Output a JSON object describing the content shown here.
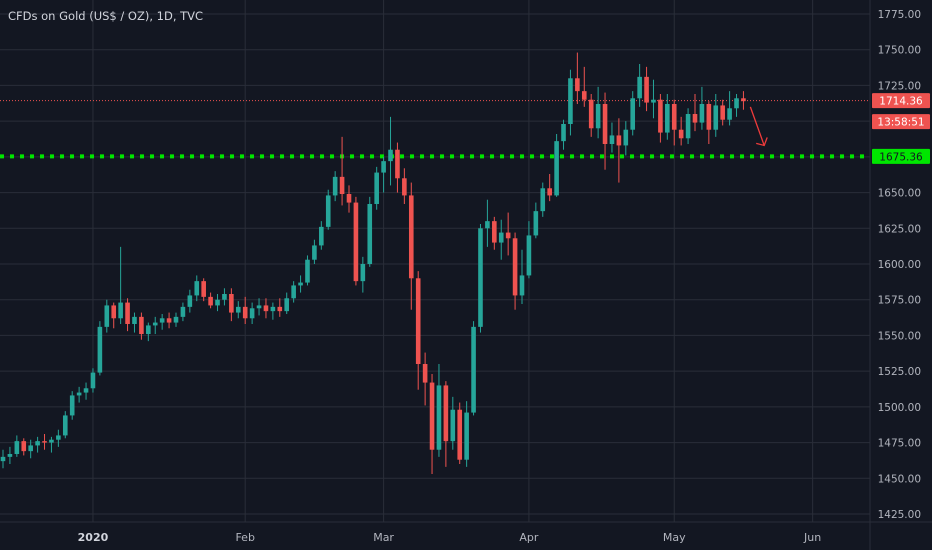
{
  "header": {
    "title": "CFDs on Gold (US$ / OZ), 1D, TVC"
  },
  "colors": {
    "background": "#131722",
    "grid": "#2a2e39",
    "up": "#26a69a",
    "down": "#ef5350",
    "support": "#00e600",
    "last_price": "#ef5350"
  },
  "chart_data": {
    "type": "candlestick",
    "title": "CFDs on Gold (US$ / OZ), 1D, TVC",
    "ylim": [
      1420,
      1780
    ],
    "yticks": [
      1425,
      1450,
      1475,
      1500,
      1525,
      1550,
      1575,
      1600,
      1625,
      1650,
      1675,
      1700,
      1725,
      1750,
      1775
    ],
    "ytick_labels": [
      "1425.00",
      "1450.00",
      "1475.00",
      "1500.00",
      "1525.00",
      "1550.00",
      "1575.00",
      "1600.00",
      "1625.00",
      "1650.00",
      "1675.00",
      "1700.00",
      "1725.00",
      "1750.00",
      "1775.00"
    ],
    "xticks": [
      {
        "label": "2020",
        "index": 13,
        "bold": true
      },
      {
        "label": "Feb",
        "index": 35,
        "bold": false
      },
      {
        "label": "Mar",
        "index": 55,
        "bold": false
      },
      {
        "label": "Apr",
        "index": 76,
        "bold": false
      },
      {
        "label": "May",
        "index": 97,
        "bold": false
      },
      {
        "label": "Jun",
        "index": 117,
        "bold": false
      }
    ],
    "last_price": {
      "value": 1714.36,
      "label": "1714.36",
      "countdown": "13:58:51"
    },
    "support_level": {
      "value": 1675.36,
      "label": "1675.36"
    },
    "arrow": {
      "from_index": 108,
      "from_price": 1710,
      "to_index": 110,
      "to_price": 1683
    },
    "candles": [
      [
        1462,
        1470,
        1457,
        1465
      ],
      [
        1465,
        1472,
        1460,
        1467
      ],
      [
        1467,
        1480,
        1465,
        1476
      ],
      [
        1476,
        1478,
        1466,
        1469
      ],
      [
        1469,
        1477,
        1464,
        1473
      ],
      [
        1473,
        1479,
        1468,
        1476
      ],
      [
        1476,
        1481,
        1470,
        1475
      ],
      [
        1475,
        1479,
        1468,
        1477
      ],
      [
        1477,
        1484,
        1472,
        1480
      ],
      [
        1480,
        1497,
        1478,
        1494
      ],
      [
        1494,
        1511,
        1491,
        1508
      ],
      [
        1508,
        1514,
        1503,
        1510
      ],
      [
        1510,
        1517,
        1505,
        1513
      ],
      [
        1513,
        1527,
        1510,
        1524
      ],
      [
        1524,
        1560,
        1522,
        1556
      ],
      [
        1556,
        1575,
        1552,
        1571
      ],
      [
        1571,
        1573,
        1555,
        1562
      ],
      [
        1562,
        1612,
        1558,
        1573
      ],
      [
        1573,
        1576,
        1553,
        1558
      ],
      [
        1558,
        1566,
        1552,
        1563
      ],
      [
        1563,
        1566,
        1547,
        1551
      ],
      [
        1551,
        1559,
        1546,
        1557
      ],
      [
        1557,
        1563,
        1551,
        1559
      ],
      [
        1559,
        1565,
        1554,
        1562
      ],
      [
        1562,
        1566,
        1555,
        1559
      ],
      [
        1559,
        1566,
        1556,
        1563
      ],
      [
        1563,
        1573,
        1560,
        1570
      ],
      [
        1570,
        1582,
        1566,
        1578
      ],
      [
        1578,
        1592,
        1574,
        1588
      ],
      [
        1588,
        1590,
        1574,
        1577
      ],
      [
        1577,
        1580,
        1569,
        1571
      ],
      [
        1571,
        1579,
        1567,
        1575
      ],
      [
        1575,
        1583,
        1571,
        1579
      ],
      [
        1579,
        1583,
        1560,
        1566
      ],
      [
        1566,
        1574,
        1562,
        1570
      ],
      [
        1570,
        1577,
        1558,
        1562
      ],
      [
        1562,
        1573,
        1558,
        1569
      ],
      [
        1569,
        1576,
        1564,
        1571
      ],
      [
        1571,
        1576,
        1562,
        1567
      ],
      [
        1567,
        1573,
        1561,
        1570
      ],
      [
        1570,
        1576,
        1563,
        1567
      ],
      [
        1567,
        1580,
        1565,
        1576
      ],
      [
        1576,
        1588,
        1573,
        1585
      ],
      [
        1585,
        1592,
        1580,
        1587
      ],
      [
        1587,
        1606,
        1585,
        1603
      ],
      [
        1603,
        1617,
        1600,
        1613
      ],
      [
        1613,
        1630,
        1610,
        1626
      ],
      [
        1626,
        1652,
        1624,
        1648
      ],
      [
        1648,
        1665,
        1644,
        1661
      ],
      [
        1661,
        1689,
        1641,
        1649
      ],
      [
        1649,
        1655,
        1636,
        1643
      ],
      [
        1643,
        1647,
        1585,
        1588
      ],
      [
        1588,
        1605,
        1580,
        1600
      ],
      [
        1600,
        1647,
        1598,
        1642
      ],
      [
        1642,
        1668,
        1638,
        1664
      ],
      [
        1664,
        1675,
        1650,
        1672
      ],
      [
        1672,
        1703,
        1655,
        1680
      ],
      [
        1680,
        1685,
        1650,
        1660
      ],
      [
        1660,
        1667,
        1642,
        1648
      ],
      [
        1648,
        1657,
        1568,
        1590
      ],
      [
        1590,
        1595,
        1512,
        1530
      ],
      [
        1530,
        1538,
        1501,
        1517
      ],
      [
        1517,
        1523,
        1453,
        1470
      ],
      [
        1470,
        1530,
        1465,
        1515
      ],
      [
        1515,
        1518,
        1458,
        1476
      ],
      [
        1476,
        1507,
        1470,
        1498
      ],
      [
        1498,
        1503,
        1460,
        1463
      ],
      [
        1463,
        1504,
        1458,
        1496
      ],
      [
        1496,
        1560,
        1494,
        1556
      ],
      [
        1556,
        1628,
        1552,
        1625
      ],
      [
        1625,
        1645,
        1612,
        1630
      ],
      [
        1630,
        1633,
        1610,
        1615
      ],
      [
        1615,
        1631,
        1603,
        1622
      ],
      [
        1622,
        1636,
        1606,
        1618
      ],
      [
        1618,
        1622,
        1568,
        1578
      ],
      [
        1578,
        1610,
        1572,
        1592
      ],
      [
        1592,
        1630,
        1590,
        1620
      ],
      [
        1620,
        1643,
        1618,
        1637
      ],
      [
        1637,
        1657,
        1633,
        1653
      ],
      [
        1653,
        1663,
        1644,
        1648
      ],
      [
        1648,
        1691,
        1647,
        1686
      ],
      [
        1686,
        1701,
        1680,
        1698
      ],
      [
        1698,
        1736,
        1690,
        1730
      ],
      [
        1730,
        1748,
        1712,
        1721
      ],
      [
        1721,
        1738,
        1710,
        1715
      ],
      [
        1715,
        1719,
        1689,
        1695
      ],
      [
        1695,
        1724,
        1688,
        1712
      ],
      [
        1712,
        1720,
        1666,
        1684
      ],
      [
        1684,
        1699,
        1678,
        1690
      ],
      [
        1690,
        1702,
        1657,
        1683
      ],
      [
        1683,
        1700,
        1676,
        1694
      ],
      [
        1694,
        1721,
        1690,
        1716
      ],
      [
        1716,
        1740,
        1710,
        1731
      ],
      [
        1731,
        1738,
        1707,
        1713
      ],
      [
        1713,
        1729,
        1702,
        1715
      ],
      [
        1715,
        1719,
        1685,
        1692
      ],
      [
        1692,
        1719,
        1687,
        1712
      ],
      [
        1712,
        1715,
        1683,
        1694
      ],
      [
        1694,
        1703,
        1683,
        1688
      ],
      [
        1688,
        1709,
        1684,
        1705
      ],
      [
        1705,
        1719,
        1693,
        1699
      ],
      [
        1699,
        1724,
        1694,
        1712
      ],
      [
        1712,
        1714,
        1684,
        1694
      ],
      [
        1694,
        1719,
        1689,
        1711
      ],
      [
        1711,
        1715,
        1697,
        1701
      ],
      [
        1701,
        1721,
        1697,
        1709
      ],
      [
        1709,
        1719,
        1703,
        1716
      ],
      [
        1716,
        1721,
        1708,
        1714
      ]
    ]
  }
}
